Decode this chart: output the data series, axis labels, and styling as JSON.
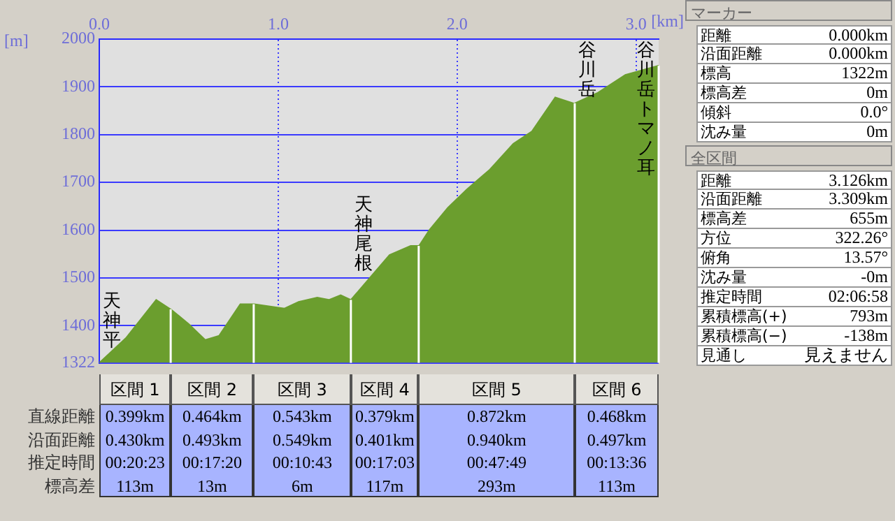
{
  "chart_data": [
    {
      "type": "area",
      "xlabel": "[km]",
      "ylabel": "[m]",
      "color": "#6b9e2e",
      "x": [
        0,
        0.149,
        0.318,
        0.404,
        0.501,
        0.592,
        0.67,
        0.788,
        0.866,
        1.035,
        1.114,
        1.218,
        1.283,
        1.349,
        1.406,
        1.505,
        1.622,
        1.74,
        1.787,
        1.844,
        1.948,
        2.053,
        2.183,
        2.314,
        2.418,
        2.548,
        2.653,
        2.783,
        2.94,
        3.122,
        3.126
      ],
      "values": [
        1322,
        1374,
        1454,
        1433,
        1403,
        1370,
        1379,
        1445,
        1445,
        1436,
        1450,
        1459,
        1454,
        1464,
        1454,
        1497,
        1548,
        1567,
        1567,
        1600,
        1647,
        1685,
        1727,
        1781,
        1807,
        1878,
        1865,
        1887,
        1925,
        1944,
        1944
      ],
      "xlim": [
        0,
        3.126
      ],
      "xticks": [
        {
          "value": 0,
          "label": "0.0"
        },
        {
          "value": 1,
          "label": "1.0"
        },
        {
          "value": 2,
          "label": "2.0"
        },
        {
          "value": 3,
          "label": "3.0"
        }
      ],
      "ylim": [
        1322,
        2000
      ],
      "yticks": [
        1322,
        1400,
        1500,
        1600,
        1700,
        1800,
        1900,
        2000
      ],
      "grid": true,
      "annotations": [
        {
          "text": "天神平",
          "x": 0,
          "y": 1322
        }
      ],
      "ref_lines": [
        {
          "axis": "x",
          "value": 0.399,
          "label": null
        },
        {
          "axis": "x",
          "value": 0.863,
          "label": null
        },
        {
          "axis": "x",
          "value": 1.406,
          "label": "天神尾根"
        },
        {
          "axis": "x",
          "value": 1.785,
          "label": null
        },
        {
          "axis": "x",
          "value": 2.657,
          "label": "谷川岳"
        },
        {
          "axis": "x",
          "value": 3.126,
          "label": "谷川岳トマノ耳"
        }
      ]
    },
    {
      "type": "other",
      "categories": [
        "区間 1",
        "区間 2",
        "区間 3",
        "区間 4",
        "区間 5",
        "区間 6"
      ],
      "y_categories": [
        "直線距離",
        "沿面距離",
        "推定時間",
        "標高差"
      ],
      "annotations": [
        "0.399km",
        "0.464km",
        "0.543km",
        "0.379km",
        "0.872km",
        "0.468km",
        "0.430km",
        "0.493km",
        "0.549km",
        "0.401km",
        "0.940km",
        "0.497km",
        "00:20:23",
        "00:17:20",
        "00:10:43",
        "00:17:03",
        "00:47:49",
        "00:13:36",
        "113m",
        "13m",
        "6m",
        "117m",
        "293m",
        "113m"
      ]
    },
    {
      "type": "other",
      "title": "マーカー",
      "y_categories": [
        "距離",
        "沿面距離",
        "標高",
        "標高差",
        "傾斜",
        "沈み量"
      ],
      "annotations": [
        "0.000km",
        "0.000km",
        "1322m",
        "0m",
        "0.0°",
        "0m"
      ]
    },
    {
      "type": "other",
      "title": "全区間",
      "y_categories": [
        "距離",
        "沿面距離",
        "標高差",
        "方位",
        "俯角",
        "沈み量",
        "推定時間",
        "累積標高(+)",
        "累積標高(−)",
        "見通し"
      ],
      "annotations": [
        "3.126km",
        "3.309km",
        "655m",
        "322.26°",
        "13.57°",
        "-0m",
        "02:06:58",
        "793m",
        "-138m",
        "見えません"
      ]
    }
  ]
}
